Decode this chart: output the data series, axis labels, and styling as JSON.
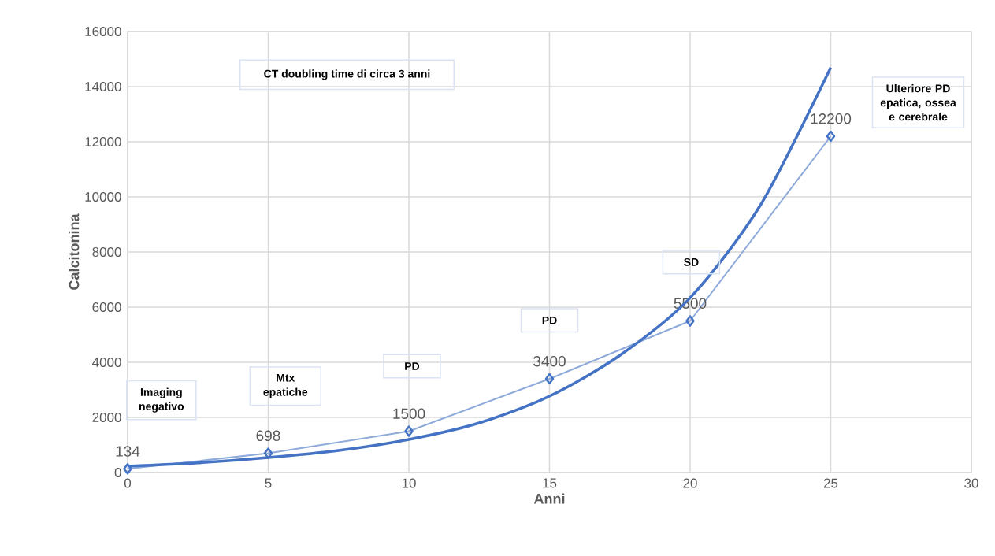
{
  "chart_data": {
    "type": "line",
    "xlabel": "Anni",
    "ylabel": "Calcitonina",
    "x": [
      0,
      5,
      10,
      15,
      20,
      25
    ],
    "series": [
      {
        "color": "#8eaadb",
        "values": [
          134,
          698,
          1500,
          3400,
          5500,
          12200
        ],
        "value_labels": [
          "134",
          "698",
          "1500",
          "3400",
          "5500",
          "12200"
        ],
        "marker": "diamond"
      },
      {
        "type": "line",
        "color": "#4472c4",
        "x": [
          0,
          2.5,
          5,
          7.5,
          10,
          12.5,
          15,
          17.5,
          20,
          22.5,
          25
        ],
        "values": [
          230,
          350,
          540,
          800,
          1200,
          1800,
          2770,
          4250,
          6340,
          9700,
          14690
        ],
        "marker": "none"
      }
    ],
    "xlim": [
      0,
      30
    ],
    "xticks": [
      0,
      5,
      10,
      15,
      20,
      25,
      30
    ],
    "ylim": [
      0,
      16000
    ],
    "yticks": [
      0,
      2000,
      4000,
      6000,
      8000,
      10000,
      12000,
      14000,
      16000
    ],
    "grid": true,
    "annotations": [
      "CT doubling time di circa 3 anni",
      "Imaging negativo",
      "Mtx epatiche",
      "PD",
      "PD",
      "SD",
      "Ulteriore PD epatica, ossea e cerebrale"
    ]
  }
}
